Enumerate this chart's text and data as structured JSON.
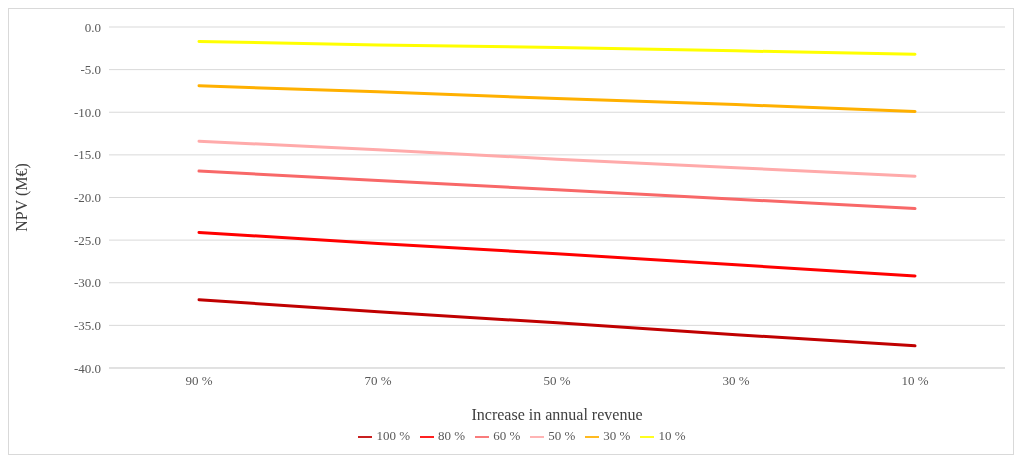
{
  "chart_data": {
    "type": "line",
    "ylabel": "NPV (M€)",
    "xlabel": "Increase in annual revenue",
    "categories": [
      "90 %",
      "70 %",
      "50 %",
      "30 %",
      "10 %"
    ],
    "series": [
      {
        "name": "100 %",
        "color": "#c00000",
        "values": [
          -32.0,
          -33.4,
          -34.7,
          -36.1,
          -37.4
        ]
      },
      {
        "name": "80 %",
        "color": "#ff0000",
        "values": [
          -24.1,
          -25.4,
          -26.6,
          -27.9,
          -29.2
        ]
      },
      {
        "name": "60 %",
        "color": "#f86868",
        "values": [
          -16.9,
          -18.0,
          -19.1,
          -20.2,
          -21.3
        ]
      },
      {
        "name": "50 %",
        "color": "#ffaaaa",
        "values": [
          -13.4,
          -14.4,
          -15.5,
          -16.5,
          -17.5
        ]
      },
      {
        "name": "30 %",
        "color": "#ffb000",
        "values": [
          -6.9,
          -7.6,
          -8.4,
          -9.1,
          -9.9
        ]
      },
      {
        "name": "10 %",
        "color": "#ffff00",
        "values": [
          -1.7,
          -2.1,
          -2.4,
          -2.8,
          -3.2
        ]
      }
    ],
    "ylim": [
      -40,
      0
    ],
    "yticks": [
      {
        "value": -40,
        "label": "-40.0"
      },
      {
        "value": -35,
        "label": "-35.0"
      },
      {
        "value": -30,
        "label": "-30.0"
      },
      {
        "value": -25,
        "label": "-25.0"
      },
      {
        "value": -20,
        "label": "-20.0"
      },
      {
        "value": -15,
        "label": "-15.0"
      },
      {
        "value": -10,
        "label": "-10.0"
      },
      {
        "value": -5,
        "label": "-5.0"
      },
      {
        "value": 0,
        "label": "0.0"
      }
    ],
    "grid": "y",
    "legend": "bottom",
    "marker": "none",
    "line_style": "solid"
  }
}
